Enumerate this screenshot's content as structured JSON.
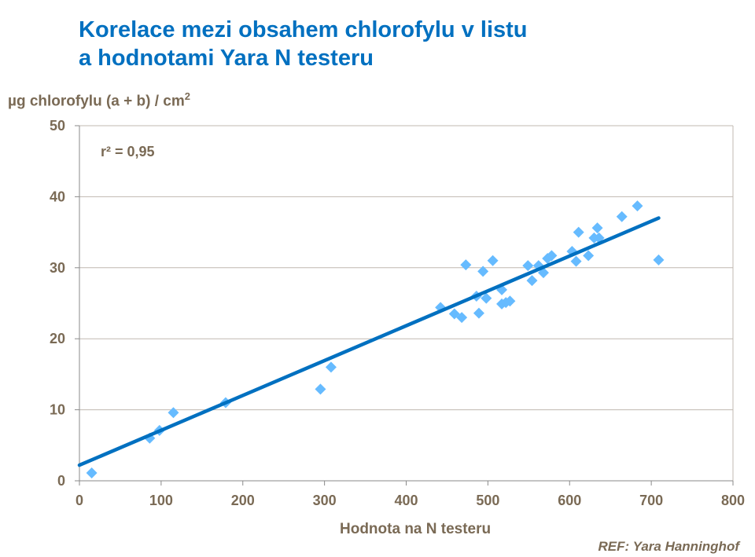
{
  "chart_data": {
    "type": "scatter",
    "title": [
      "Korelace mezi obsahem chlorofylu v listu",
      "a hodnotami Yara N testeru"
    ],
    "ylabel": "µg chlorofylu (a + b) / cm",
    "ylabel_sup": "2",
    "xlabel": "Hodnota na N testeru",
    "annotation": "r² = 0,95",
    "source": "REF: Yara Hanninghof",
    "xlim": [
      0,
      800
    ],
    "ylim": [
      0,
      50
    ],
    "xticks": [
      0,
      100,
      200,
      300,
      400,
      500,
      600,
      700,
      800
    ],
    "yticks": [
      0,
      10,
      20,
      30,
      40,
      50
    ],
    "grid": "horizontal",
    "marker": "diamond",
    "colors": {
      "points": "#66bbff",
      "trendline": "#0070c0",
      "title": "#0070c0",
      "text": "#7a6a55",
      "grid": "#c0b8b0"
    },
    "points": [
      [
        15,
        1.1
      ],
      [
        86,
        6.0
      ],
      [
        98,
        7.1
      ],
      [
        115,
        9.6
      ],
      [
        179,
        11.0
      ],
      [
        295,
        12.9
      ],
      [
        308,
        16.0
      ],
      [
        442,
        24.4
      ],
      [
        459,
        23.5
      ],
      [
        468,
        23.0
      ],
      [
        473,
        30.4
      ],
      [
        486,
        26.0
      ],
      [
        489,
        23.6
      ],
      [
        494,
        29.5
      ],
      [
        498,
        25.7
      ],
      [
        506,
        31.0
      ],
      [
        517,
        26.9
      ],
      [
        517,
        24.9
      ],
      [
        522,
        25.1
      ],
      [
        527,
        25.3
      ],
      [
        549,
        30.3
      ],
      [
        554,
        28.2
      ],
      [
        562,
        30.3
      ],
      [
        568,
        29.3
      ],
      [
        573,
        31.3
      ],
      [
        578,
        31.7
      ],
      [
        603,
        32.3
      ],
      [
        608,
        30.9
      ],
      [
        611,
        35.0
      ],
      [
        623,
        31.7
      ],
      [
        630,
        34.2
      ],
      [
        634,
        35.6
      ],
      [
        636,
        34.2
      ],
      [
        664,
        37.2
      ],
      [
        683,
        38.7
      ],
      [
        709,
        31.1
      ]
    ],
    "trendline": {
      "x": [
        0,
        709
      ],
      "y": [
        2.2,
        37.0
      ]
    }
  }
}
